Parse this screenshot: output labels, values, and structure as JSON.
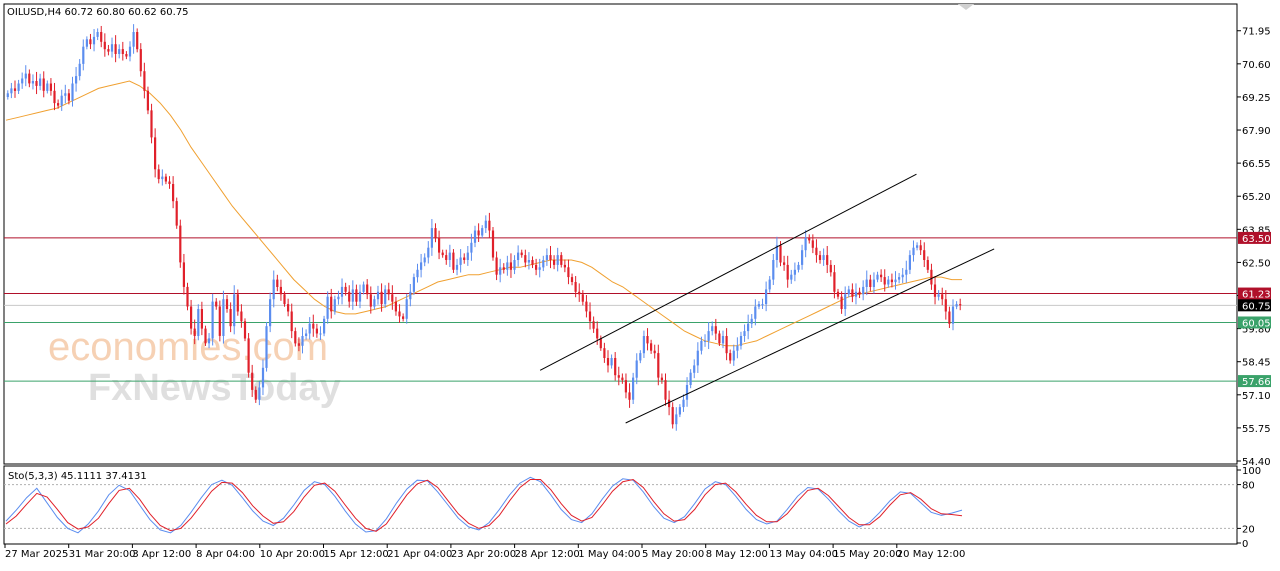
{
  "header": {
    "symbol_info": "OILUSD,H4  60.72 60.80 60.62 60.75"
  },
  "watermark": {
    "line1": "economies.com",
    "line2": "FxNewsToday"
  },
  "colors": {
    "bull_candle": "#5b8def",
    "bear_candle": "#e0202a",
    "moving_average": "#f0a030",
    "resistance_line": "#b0102a",
    "support_line": "#3aa26a",
    "stoch_main": "#5b8def",
    "stoch_signal": "#e0202a"
  },
  "chart_data": [
    {
      "type": "candlestick",
      "symbol": "OILUSD",
      "timeframe": "H4",
      "ylim": [
        54.4,
        73.0
      ],
      "y_ticks": [
        71.95,
        70.6,
        69.25,
        67.9,
        66.55,
        65.2,
        63.85,
        62.5,
        61.15,
        59.8,
        58.45,
        57.1,
        55.75,
        54.4
      ],
      "x_tick_labels": [
        "27 Mar 2025",
        "31 Mar 20:00",
        "3 Apr 12:00",
        "8 Apr 04:00",
        "10 Apr 20:00",
        "15 Apr 12:00",
        "21 Apr 04:00",
        "23 Apr 20:00",
        "28 Apr 12:00",
        "1 May 04:00",
        "5 May 20:00",
        "8 May 12:00",
        "13 May 04:00",
        "15 May 20:00",
        "20 May 12:00"
      ],
      "price_path": [
        69.4,
        69.6,
        69.5,
        69.8,
        70.0,
        70.2,
        69.8,
        69.9,
        69.7,
        70.0,
        69.5,
        69.8,
        69.5,
        69.0,
        68.9,
        69.3,
        69.4,
        69.1,
        69.8,
        70.1,
        70.6,
        71.3,
        71.6,
        71.4,
        71.7,
        71.9,
        71.5,
        71.2,
        71.1,
        71.4,
        71.0,
        71.2,
        71.0,
        70.9,
        71.3,
        71.9,
        71.2,
        70.3,
        69.5,
        68.7,
        67.6,
        66.3,
        65.9,
        66.0,
        65.8,
        65.7,
        65.0,
        64.0,
        62.5,
        61.5,
        60.7,
        59.8,
        59.5,
        60.6,
        59.8,
        59.2,
        59.4,
        60.9,
        60.7,
        59.5,
        61.0,
        60.6,
        59.9,
        61.2,
        60.5,
        60.1,
        59.4,
        58.0,
        57.3,
        56.9,
        57.4,
        58.2,
        59.9,
        61.0,
        61.8,
        61.5,
        61.2,
        60.8,
        60.5,
        59.7,
        59.2,
        59.1,
        59.5,
        59.6,
        60.0,
        59.8,
        59.6,
        59.6,
        60.2,
        61.1,
        60.5,
        61.0,
        61.1,
        61.5,
        61.3,
        60.9,
        61.4,
        60.9,
        61.3,
        61.6,
        61.2,
        60.7,
        61.0,
        61.3,
        60.8,
        61.4,
        61.2,
        60.9,
        60.5,
        60.3,
        60.2,
        61.0,
        61.3,
        61.9,
        62.2,
        62.5,
        62.7,
        63.1,
        63.9,
        63.5,
        62.9,
        62.8,
        62.6,
        62.9,
        62.2,
        62.4,
        62.7,
        62.6,
        62.9,
        63.3,
        63.8,
        63.6,
        63.9,
        64.2,
        63.8,
        62.7,
        62.0,
        62.3,
        62.2,
        62.5,
        62.2,
        62.6,
        62.9,
        62.8,
        62.5,
        62.6,
        62.4,
        62.2,
        62.3,
        62.6,
        62.8,
        62.6,
        62.4,
        62.8,
        62.4,
        62.3,
        61.9,
        61.7,
        61.3,
        61.2,
        60.9,
        60.5,
        60.1,
        59.8,
        59.4,
        59.0,
        58.6,
        58.3,
        58.6,
        57.9,
        57.8,
        57.7,
        57.2,
        56.9,
        57.8,
        58.5,
        58.8,
        59.5,
        59.2,
        58.9,
        58.8,
        57.8,
        57.7,
        56.9,
        56.6,
        55.9,
        56.3,
        56.6,
        56.9,
        57.5,
        58.0,
        58.3,
        58.9,
        59.3,
        59.3,
        59.7,
        59.9,
        59.6,
        59.2,
        59.5,
        58.8,
        58.5,
        58.9,
        59.1,
        59.5,
        59.7,
        60.0,
        60.2,
        60.7,
        60.8,
        60.8,
        61.4,
        61.8,
        62.6,
        63.2,
        62.5,
        62.4,
        61.8,
        62.0,
        62.2,
        62.4,
        63.0,
        63.5,
        63.4,
        63.1,
        62.8,
        62.6,
        62.8,
        62.4,
        62.1,
        61.3,
        61.1,
        60.6,
        61.2,
        61.4,
        61.1,
        61.3,
        61.2,
        61.5,
        61.8,
        61.5,
        61.8,
        62.0,
        61.9,
        61.6,
        61.8,
        61.7,
        61.8,
        61.9,
        62.0,
        62.2,
        62.8,
        63.1,
        63.2,
        63.0,
        62.6,
        62.2,
        61.6,
        61.1,
        61.2,
        61.0,
        60.5,
        60.0,
        60.7,
        60.8,
        60.75
      ],
      "moving_average": [
        68.3,
        68.4,
        68.5,
        68.6,
        68.7,
        68.8,
        69.0,
        69.2,
        69.4,
        69.6,
        69.7,
        69.8,
        69.9,
        69.7,
        69.4,
        69.0,
        68.5,
        67.9,
        67.2,
        66.6,
        66.0,
        65.4,
        64.8,
        64.3,
        63.8,
        63.3,
        62.8,
        62.3,
        61.8,
        61.4,
        61.0,
        60.7,
        60.5,
        60.4,
        60.4,
        60.5,
        60.6,
        60.7,
        60.9,
        61.1,
        61.3,
        61.5,
        61.7,
        61.8,
        61.9,
        62.0,
        62.0,
        62.1,
        62.2,
        62.3,
        62.3,
        62.4,
        62.5,
        62.6,
        62.6,
        62.6,
        62.5,
        62.3,
        62.0,
        61.7,
        61.5,
        61.2,
        60.9,
        60.6,
        60.3,
        60.0,
        59.7,
        59.5,
        59.3,
        59.2,
        59.1,
        59.1,
        59.2,
        59.3,
        59.5,
        59.7,
        59.9,
        60.1,
        60.3,
        60.5,
        60.7,
        60.9,
        61.1,
        61.2,
        61.3,
        61.4,
        61.5,
        61.6,
        61.7,
        61.8,
        61.9,
        61.9,
        61.8,
        61.8
      ],
      "trendlines": [
        {
          "from": [
            0.4173,
            58.1
          ],
          "to": [
            0.7113,
            66.1
          ]
        },
        {
          "from": [
            0.4841,
            55.95
          ],
          "to": [
            0.772,
            63.05
          ]
        }
      ],
      "horizontal_levels": [
        {
          "value": 63.5,
          "label": "63.50",
          "role": "resistance"
        },
        {
          "value": 61.23,
          "label": "61.23",
          "role": "resistance"
        },
        {
          "value": 60.05,
          "label": "60.05",
          "role": "support"
        },
        {
          "value": 57.66,
          "label": "57.66",
          "role": "support"
        }
      ],
      "current_price": {
        "value": 60.75,
        "label": "60.75"
      }
    },
    {
      "type": "line",
      "name": "Sto(5,3,3) 45.1111 37.4131",
      "ylim": [
        0,
        100
      ],
      "y_ticks": [
        100,
        80,
        20,
        0
      ],
      "levels": [
        80,
        20
      ],
      "series": [
        {
          "name": "main",
          "values": [
            30,
            45,
            62,
            75,
            55,
            35,
            20,
            14,
            26,
            44,
            66,
            79,
            72,
            52,
            32,
            18,
            14,
            24,
            42,
            62,
            80,
            86,
            79,
            62,
            44,
            30,
            24,
            34,
            52,
            72,
            84,
            80,
            64,
            44,
            26,
            15,
            17,
            33,
            55,
            74,
            86,
            85,
            70,
            52,
            34,
            22,
            18,
            28,
            46,
            66,
            82,
            90,
            84,
            66,
            46,
            32,
            28,
            40,
            60,
            78,
            88,
            86,
            70,
            50,
            34,
            28,
            36,
            54,
            74,
            84,
            80,
            64,
            46,
            32,
            26,
            30,
            46,
            64,
            76,
            74,
            60,
            44,
            30,
            22,
            28,
            42,
            58,
            70,
            68,
            55,
            42,
            38,
            41,
            45
          ]
        },
        {
          "name": "signal",
          "values": [
            26,
            37,
            53,
            68,
            63,
            46,
            28,
            19,
            22,
            34,
            54,
            72,
            75,
            60,
            40,
            24,
            17,
            20,
            34,
            52,
            71,
            83,
            82,
            69,
            51,
            37,
            27,
            29,
            43,
            63,
            79,
            82,
            71,
            52,
            34,
            20,
            16,
            26,
            46,
            66,
            81,
            86,
            76,
            58,
            40,
            27,
            20,
            24,
            38,
            58,
            76,
            87,
            87,
            73,
            54,
            38,
            30,
            35,
            52,
            71,
            84,
            87,
            76,
            57,
            40,
            30,
            32,
            46,
            66,
            80,
            82,
            70,
            53,
            38,
            29,
            29,
            40,
            57,
            72,
            75,
            65,
            50,
            35,
            25,
            25,
            36,
            52,
            66,
            69,
            60,
            47,
            40,
            39,
            37.4
          ]
        }
      ]
    }
  ]
}
